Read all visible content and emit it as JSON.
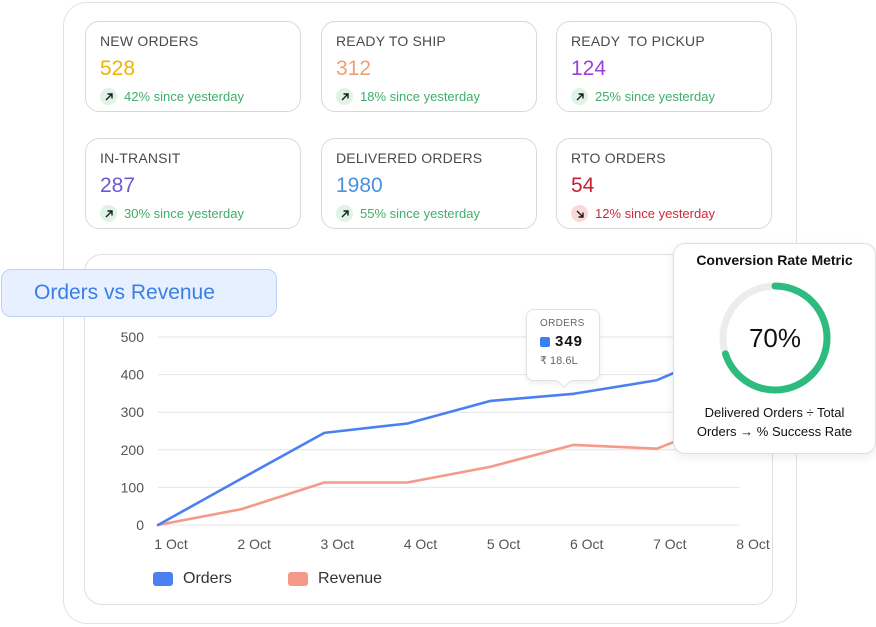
{
  "stats": [
    {
      "title": "NEW ORDERS",
      "value": "528",
      "value_color": "#f0b400",
      "trend": "42% since yesterday",
      "direction": "up"
    },
    {
      "title": "READY TO SHIP",
      "value": "312",
      "value_color": "#f0a070",
      "trend": "18% since yesterday",
      "direction": "up"
    },
    {
      "title": "READY  TO PICKUP",
      "value": "124",
      "value_color": "#9b40d8",
      "trend": "25% since yesterday",
      "direction": "up"
    },
    {
      "title": "IN-TRANSIT",
      "value": "287",
      "value_color": "#6a5ad8",
      "trend": "30% since yesterday",
      "direction": "up"
    },
    {
      "title": "DELIVERED ORDERS",
      "value": "1980",
      "value_color": "#4a90e2",
      "trend": "55% since yesterday",
      "direction": "up"
    },
    {
      "title": "RTO ORDERS",
      "value": "54",
      "value_color": "#c8202f",
      "trend": "12% since yesterday",
      "direction": "down"
    }
  ],
  "chart": {
    "title": "Orders vs Revenue",
    "tooltip": {
      "title": "ORDERS",
      "value": "349",
      "sub": "₹ 18.6L"
    },
    "legend": {
      "orders": "Orders",
      "revenue": "Revenue"
    }
  },
  "chart_data": {
    "type": "line",
    "categories": [
      "1 Oct",
      "2 Oct",
      "3 Oct",
      "4 Oct",
      "5 Oct",
      "6 Oct",
      "7 Oct",
      "8 Oct"
    ],
    "yticks": [
      0,
      100,
      200,
      300,
      400,
      500
    ],
    "ylim": [
      0,
      500
    ],
    "grid": true,
    "legend_position": "bottom-left",
    "series": [
      {
        "name": "Orders",
        "color": "#4a80f0",
        "values": [
          0,
          123,
          245,
          270,
          330,
          349,
          385,
          480
        ]
      },
      {
        "name": "Revenue",
        "color": "#f59a88",
        "values": [
          0,
          42,
          113,
          113,
          155,
          213,
          203,
          290
        ]
      }
    ]
  },
  "conversion": {
    "title": "Conversion Rate Metric",
    "value": "70%",
    "fraction": 0.7,
    "description": "Delivered Orders ÷ Total Orders → % Success Rate",
    "ring_color": "#2dbb7f",
    "track_color": "#ececec"
  }
}
